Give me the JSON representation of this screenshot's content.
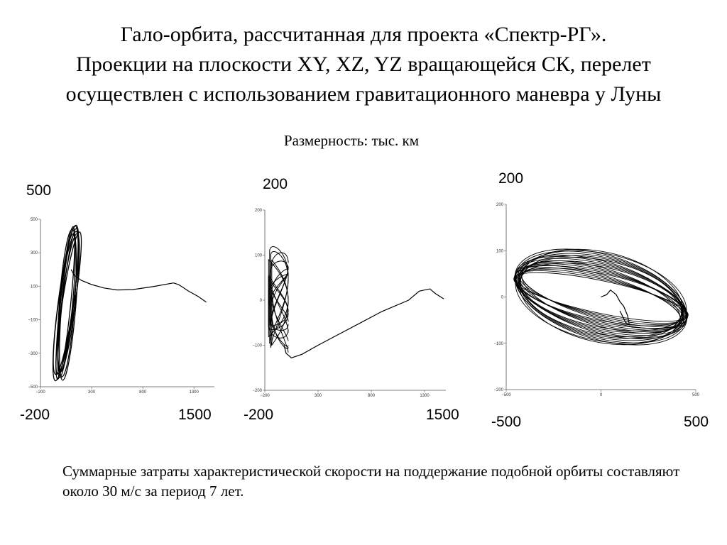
{
  "title_lines": [
    "Гало-орбита, рассчитанная для проекта «Спектр-РГ».",
    "Проекции на плоскости XY, XZ, YZ вращающейся СК, перелет",
    "осуществлен с использованием гравитационного маневра у Луны"
  ],
  "units_label": "Размерность: тыс. км",
  "note": "Суммарные затраты характеристической скорости на поддержание подобной орбиты составляют около 30 м/с за период 7 лет.",
  "chart_data": [
    {
      "type": "line",
      "projection": "XY",
      "xlim": [
        -200,
        1500
      ],
      "ylim": [
        -500,
        500
      ],
      "big_labels": {
        "y_top": "500",
        "x_left": "-200",
        "x_right": "1500"
      },
      "x_ticks": [
        "−200",
        "300",
        "800",
        "1300"
      ],
      "y_ticks": [
        "500",
        "300",
        "100",
        "−100",
        "−300",
        "−500"
      ],
      "series": [
        {
          "role": "transfer",
          "x": [
            100,
            130,
            200,
            300,
            420,
            550,
            700,
            900,
            1100,
            1150,
            1250,
            1340,
            1420
          ],
          "y": [
            200,
            165,
            135,
            110,
            90,
            78,
            80,
            98,
            120,
            110,
            70,
            40,
            5
          ]
        },
        {
          "role": "halo",
          "center": [
            60,
            0
          ],
          "radius": [
            75,
            470
          ],
          "loops": 9
        }
      ]
    },
    {
      "type": "line",
      "projection": "XZ",
      "xlim": [
        -200,
        1500
      ],
      "ylim": [
        -200,
        200
      ],
      "big_labels": {
        "y_top": "200",
        "x_left": "-200",
        "x_right": "1500"
      },
      "x_ticks": [
        "−200",
        "300",
        "800",
        "1300"
      ],
      "y_ticks": [
        "200",
        "100",
        "0",
        "−100",
        "−200"
      ],
      "series": [
        {
          "role": "transfer",
          "x": [
            -20,
            0,
            50,
            150,
            300,
            500,
            700,
            900,
            1150,
            1250,
            1350,
            1400,
            1480
          ],
          "y": [
            -100,
            -118,
            -128,
            -120,
            -100,
            -75,
            -50,
            -25,
            0,
            20,
            25,
            15,
            3
          ]
        },
        {
          "role": "halo",
          "x_range": [
            -165,
            20
          ],
          "y_amp": 120,
          "loops": 14
        }
      ]
    },
    {
      "type": "line",
      "projection": "YZ",
      "xlim": [
        -500,
        500
      ],
      "ylim": [
        -200,
        200
      ],
      "big_labels": {
        "y_top": "200",
        "x_left": "-500",
        "x_right": "500"
      },
      "x_ticks": [
        "−500",
        "0",
        "500"
      ],
      "y_ticks": [
        "200",
        "100",
        "0",
        "−100",
        "−200"
      ],
      "series": [
        {
          "role": "transfer",
          "x": [
            0,
            30,
            50,
            80,
            100,
            120,
            140,
            150,
            130,
            100
          ],
          "y": [
            0,
            5,
            15,
            5,
            -10,
            -20,
            -40,
            -60,
            -55,
            -30
          ]
        },
        {
          "role": "halo",
          "center": [
            0,
            0
          ],
          "semi_axis": [
            470,
            100
          ],
          "loops": 22
        }
      ]
    }
  ]
}
